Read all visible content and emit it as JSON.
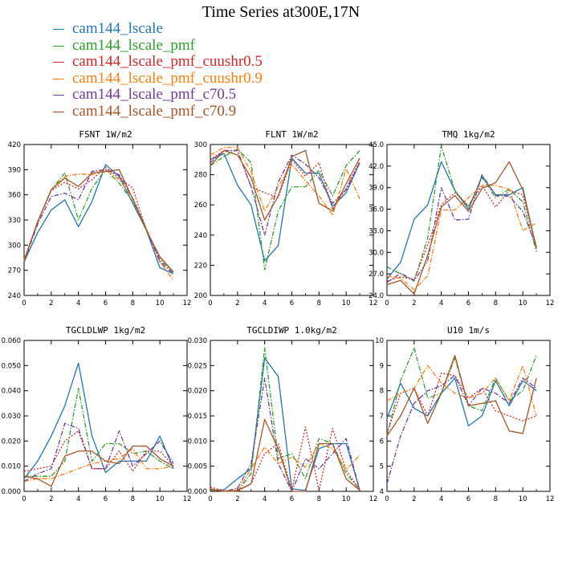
{
  "title": "Time Series at300E,17N",
  "colors": {
    "cam144_lscale": "#1f77b4",
    "cam144_lscale_pmf": "#2ca02c",
    "cam144_lscale_pmf_cuushr0.5": "#d62728",
    "cam144_lscale_pmf_cuushr0.9": "#ff7f0e",
    "cam144_lscale_pmf_c70.5": "#6f3c9c",
    "cam144_lscale_pmf_c70.9": "#a65628"
  },
  "legend": [
    {
      "label": "cam144_lscale",
      "color": "#1f77b4",
      "dash": "solid"
    },
    {
      "label": "cam144_lscale_pmf",
      "color": "#2ca02c",
      "dash": "dashdot"
    },
    {
      "label": "cam144_lscale_pmf_cuushr0.5",
      "color": "#d62728",
      "dash": "dot"
    },
    {
      "label": "cam144_lscale_pmf_cuushr0.9",
      "color": "#ff7f0e",
      "dash": "dashdot"
    },
    {
      "label": "cam144_lscale_pmf_c70.5",
      "color": "#6f3c9c",
      "dash": "dashdot"
    },
    {
      "label": "cam144_lscale_pmf_c70.9",
      "color": "#a65628",
      "dash": "solid"
    }
  ],
  "chart_data": [
    {
      "type": "line",
      "title": "FSNT  1W/m2",
      "xlim": [
        0,
        12
      ],
      "ylim": [
        240,
        420
      ],
      "xticks": [
        0,
        2,
        4,
        6,
        8,
        10,
        12
      ],
      "yticks": [
        240,
        270,
        300,
        330,
        360,
        390,
        420
      ],
      "ytick_labels": [
        "240",
        "270",
        "300",
        "330",
        "360",
        "390",
        "420"
      ],
      "x": [
        0,
        1,
        2,
        3,
        4,
        5,
        6,
        7,
        8,
        9,
        10,
        11
      ],
      "series": [
        {
          "name": "cam144_lscale",
          "values": [
            280,
            315,
            342,
            354,
            322,
            352,
            396,
            382,
            350,
            318,
            273,
            266
          ]
        },
        {
          "name": "cam144_lscale_pmf",
          "values": [
            282,
            328,
            366,
            386,
            330,
            368,
            390,
            374,
            352,
            318,
            282,
            268
          ]
        },
        {
          "name": "cam144_lscale_pmf_cuushr0.5",
          "values": [
            281,
            328,
            365,
            375,
            367,
            378,
            393,
            380,
            368,
            318,
            285,
            268
          ]
        },
        {
          "name": "cam144_lscale_pmf_cuushr0.9",
          "values": [
            283,
            327,
            366,
            382,
            385,
            384,
            390,
            378,
            356,
            320,
            280,
            258
          ]
        },
        {
          "name": "cam144_lscale_pmf_c70.5",
          "values": [
            280,
            325,
            358,
            362,
            354,
            388,
            390,
            384,
            356,
            319,
            280,
            266
          ]
        },
        {
          "name": "cam144_lscale_pmf_c70.9",
          "values": [
            281,
            328,
            366,
            380,
            370,
            386,
            388,
            390,
            355,
            318,
            286,
            268
          ]
        }
      ]
    },
    {
      "type": "line",
      "title": "FLNT  1W/m2",
      "xlim": [
        0,
        12
      ],
      "ylim": [
        200,
        300
      ],
      "xticks": [
        0,
        2,
        4,
        6,
        8,
        10,
        12
      ],
      "yticks": [
        200,
        220,
        240,
        260,
        280,
        300
      ],
      "ytick_labels": [
        "200",
        "220",
        "240",
        "260",
        "280",
        "300"
      ],
      "x": [
        0,
        1,
        2,
        3,
        4,
        5,
        6,
        7,
        8,
        9,
        10,
        11
      ],
      "series": [
        {
          "name": "cam144_lscale",
          "values": [
            290,
            294,
            273,
            260,
            223,
            233,
            291,
            281,
            281,
            259,
            268,
            288
          ]
        },
        {
          "name": "cam144_lscale_pmf",
          "values": [
            286,
            292,
            297,
            288,
            217,
            256,
            272,
            272,
            283,
            266,
            286,
            296
          ]
        },
        {
          "name": "cam144_lscale_pmf_cuushr0.5",
          "values": [
            290,
            296,
            296,
            272,
            268,
            265,
            290,
            279,
            288,
            257,
            271,
            289
          ]
        },
        {
          "name": "cam144_lscale_pmf_cuushr0.9",
          "values": [
            293,
            298,
            298,
            282,
            256,
            272,
            287,
            276,
            266,
            253,
            284,
            264
          ]
        },
        {
          "name": "cam144_lscale_pmf_c70.5",
          "values": [
            288,
            296,
            296,
            272,
            240,
            275,
            293,
            287,
            278,
            261,
            270,
            288
          ]
        },
        {
          "name": "cam144_lscale_pmf_c70.9",
          "values": [
            286,
            296,
            293,
            278,
            250,
            266,
            292,
            296,
            261,
            256,
            274,
            291
          ]
        }
      ]
    },
    {
      "type": "line",
      "title": "TMQ  1kg/m2",
      "xlim": [
        0,
        12
      ],
      "ylim": [
        24,
        45
      ],
      "xticks": [
        0,
        2,
        4,
        6,
        8,
        10,
        12
      ],
      "yticks": [
        24,
        27,
        30,
        33,
        36,
        39,
        42,
        45
      ],
      "ytick_labels": [
        "24.0",
        "27.0",
        "30.0",
        "33.0",
        "36.0",
        "39.0",
        "42.0",
        "45.0"
      ],
      "x": [
        0,
        1,
        2,
        3,
        4,
        5,
        6,
        7,
        8,
        9,
        10,
        11
      ],
      "series": [
        {
          "name": "cam144_lscale",
          "values": [
            26.3,
            28.6,
            34.6,
            36.6,
            42.6,
            38.6,
            36.0,
            40.6,
            38.0,
            38.0,
            39.0,
            30.5
          ]
        },
        {
          "name": "cam144_lscale_pmf",
          "values": [
            28.0,
            27.0,
            26.0,
            32.0,
            44.8,
            38.6,
            36.3,
            40.4,
            37.6,
            38.8,
            37.0,
            30.1
          ]
        },
        {
          "name": "cam144_lscale_pmf_cuushr0.5",
          "values": [
            26.0,
            26.6,
            26.2,
            31.0,
            36.6,
            38.3,
            36.5,
            39.3,
            36.3,
            38.6,
            38.0,
            30.8
          ]
        },
        {
          "name": "cam144_lscale_pmf_cuushr0.9",
          "values": [
            26.7,
            26.4,
            24.8,
            26.7,
            35.9,
            35.9,
            37.6,
            39.3,
            39.3,
            38.8,
            33.0,
            34.1
          ]
        },
        {
          "name": "cam144_lscale_pmf_c70.5",
          "values": [
            25.8,
            27.1,
            26.1,
            28.8,
            39.0,
            34.5,
            34.6,
            40.8,
            37.9,
            37.8,
            35.7,
            30.8
          ]
        },
        {
          "name": "cam144_lscale_pmf_c70.9",
          "values": [
            25.5,
            26.1,
            24.2,
            29.6,
            36.3,
            37.9,
            35.7,
            38.9,
            39.7,
            42.6,
            38.7,
            30.6
          ]
        }
      ]
    },
    {
      "type": "line",
      "title": "TGCLDLWP  1kg/m2",
      "xlim": [
        0,
        12
      ],
      "ylim": [
        0,
        0.06
      ],
      "xticks": [
        0,
        2,
        4,
        6,
        8,
        10,
        12
      ],
      "yticks": [
        0,
        0.01,
        0.02,
        0.03,
        0.04,
        0.05,
        0.06
      ],
      "ytick_labels": [
        "0.000",
        "0.010",
        "0.020",
        "0.030",
        "0.040",
        "0.050",
        "0.060"
      ],
      "x": [
        0,
        1,
        2,
        3,
        4,
        5,
        6,
        7,
        8,
        9,
        10,
        11
      ],
      "series": [
        {
          "name": "cam144_lscale",
          "values": [
            0.005,
            0.012,
            0.022,
            0.034,
            0.051,
            0.022,
            0.0075,
            0.012,
            0.012,
            0.012,
            0.022,
            0.009
          ]
        },
        {
          "name": "cam144_lscale_pmf",
          "values": [
            0.006,
            0.006,
            0.006,
            0.012,
            0.041,
            0.012,
            0.019,
            0.019,
            0.015,
            0.016,
            0.012,
            0.009
          ]
        },
        {
          "name": "cam144_lscale_pmf_cuushr0.5",
          "values": [
            0.008,
            0.009,
            0.01,
            0.02,
            0.024,
            0.009,
            0.009,
            0.016,
            0.008,
            0.016,
            0.016,
            0.01
          ]
        },
        {
          "name": "cam144_lscale_pmf_cuushr0.9",
          "values": [
            0.004,
            0.005,
            0.005,
            0.007,
            0.009,
            0.011,
            0.012,
            0.013,
            0.017,
            0.009,
            0.009,
            0.01
          ]
        },
        {
          "name": "cam144_lscale_pmf_c70.5",
          "values": [
            0.004,
            0.007,
            0.009,
            0.027,
            0.025,
            0.009,
            0.009,
            0.024,
            0.01,
            0.015,
            0.02,
            0.011
          ]
        },
        {
          "name": "cam144_lscale_pmf_c70.9",
          "values": [
            0.006,
            0.005,
            0.002,
            0.014,
            0.016,
            0.016,
            0.012,
            0.011,
            0.018,
            0.018,
            0.013,
            0.01
          ]
        }
      ]
    },
    {
      "type": "line",
      "title": "TGCLDIWP  1.0kg/m2",
      "xlim": [
        0,
        12
      ],
      "ylim": [
        0,
        0.03
      ],
      "xticks": [
        0,
        2,
        4,
        6,
        8,
        10,
        12
      ],
      "yticks": [
        0,
        0.005,
        0.01,
        0.015,
        0.02,
        0.025,
        0.03
      ],
      "ytick_labels": [
        "0.000",
        "0.005",
        "0.010",
        "0.015",
        "0.020",
        "0.025",
        "0.030"
      ],
      "x": [
        0,
        1,
        2,
        3,
        4,
        5,
        6,
        7,
        8,
        9,
        10,
        11
      ],
      "series": [
        {
          "name": "cam144_lscale",
          "values": [
            0.0002,
            0.0003,
            0.0025,
            0.0045,
            0.0265,
            0.0228,
            0.0005,
            0.0002,
            0.0085,
            0.0095,
            0.0095,
            0.0002
          ]
        },
        {
          "name": "cam144_lscale_pmf",
          "values": [
            0.0005,
            0.0,
            0.0,
            0.0035,
            0.0285,
            0.0065,
            0.0075,
            0.0025,
            0.0105,
            0.0095,
            0.0035,
            0.0004
          ]
        },
        {
          "name": "cam144_lscale_pmf_cuushr0.5",
          "values": [
            0.0008,
            0.0002,
            0.0,
            0.0015,
            0.0075,
            0.0095,
            0.0002,
            0.0128,
            0.0002,
            0.0125,
            0.0042,
            0.0003
          ]
        },
        {
          "name": "cam144_lscale_pmf_cuushr0.9",
          "values": [
            0.0003,
            0.0001,
            0.0,
            0.0045,
            0.0088,
            0.0055,
            0.0068,
            0.0048,
            0.0095,
            0.0085,
            0.0043,
            0.0072
          ]
        },
        {
          "name": "cam144_lscale_pmf_c70.5",
          "values": [
            0.0004,
            0.0,
            0.0006,
            0.0055,
            0.0225,
            0.0055,
            0.0,
            0.0065,
            0.0045,
            0.0075,
            0.0105,
            0.0002
          ]
        },
        {
          "name": "cam144_lscale_pmf_c70.9",
          "values": [
            0.0004,
            0.0,
            0.0002,
            0.0015,
            0.0143,
            0.0085,
            0.0,
            0.0,
            0.0095,
            0.0095,
            0.0025,
            0.0002
          ]
        }
      ]
    },
    {
      "type": "line",
      "title": "U10  1m/s",
      "xlim": [
        0,
        12
      ],
      "ylim": [
        4,
        10
      ],
      "xticks": [
        0,
        2,
        4,
        6,
        8,
        10,
        12
      ],
      "yticks": [
        4,
        5,
        6,
        7,
        8,
        9,
        10
      ],
      "ytick_labels": [
        "4",
        "5",
        "6",
        "7",
        "8",
        "9",
        "10"
      ],
      "x": [
        0,
        1,
        2,
        3,
        4,
        5,
        6,
        7,
        8,
        9,
        10,
        11
      ],
      "series": [
        {
          "name": "cam144_lscale",
          "values": [
            6.9,
            8.3,
            7.3,
            7.0,
            7.9,
            8.5,
            6.6,
            7.0,
            8.4,
            7.4,
            8.4,
            8.0
          ]
        },
        {
          "name": "cam144_lscale_pmf",
          "values": [
            6.2,
            8.4,
            9.7,
            7.7,
            7.9,
            9.3,
            7.4,
            7.2,
            8.5,
            7.6,
            8.0,
            9.4
          ]
        },
        {
          "name": "cam144_lscale_pmf_cuushr0.5",
          "values": [
            6.3,
            7.9,
            8.1,
            7.0,
            8.7,
            8.6,
            7.7,
            8.1,
            7.2,
            7.0,
            6.8,
            7.0
          ]
        },
        {
          "name": "cam144_lscale_pmf_cuushr0.9",
          "values": [
            7.6,
            7.9,
            8.1,
            9.0,
            8.3,
            7.9,
            7.7,
            7.9,
            8.5,
            7.6,
            9.0,
            7.0
          ]
        },
        {
          "name": "cam144_lscale_pmf_c70.5",
          "values": [
            4.3,
            6.2,
            7.5,
            8.0,
            8.2,
            8.6,
            7.4,
            8.1,
            7.9,
            7.5,
            8.5,
            8.1
          ]
        },
        {
          "name": "cam144_lscale_pmf_c70.9",
          "values": [
            6.2,
            7.0,
            8.1,
            6.7,
            7.9,
            9.4,
            7.4,
            7.5,
            7.6,
            6.4,
            6.3,
            8.5
          ]
        }
      ]
    }
  ]
}
